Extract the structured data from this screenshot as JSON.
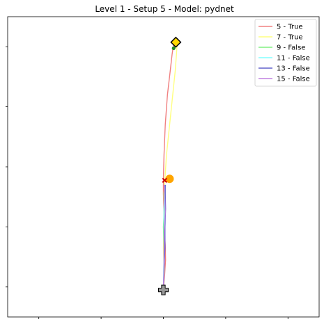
{
  "chart_data": {
    "type": "line",
    "title": "Level 1 - Setup 5 - Model: pydnet",
    "xlabel": "",
    "ylabel": "",
    "xlim": [
      0,
      10
    ],
    "ylim": [
      0,
      10
    ],
    "grid": false,
    "legend_position": "top-right",
    "series": [
      {
        "name": "5 - True",
        "color": "#f08080",
        "points": [
          [
            5.0,
            0.9
          ],
          [
            5.04,
            1.4
          ],
          [
            5.07,
            1.9
          ],
          [
            5.06,
            2.4
          ],
          [
            5.03,
            2.9
          ],
          [
            5.02,
            3.4
          ],
          [
            5.0,
            4.1
          ],
          [
            5.0,
            4.6
          ],
          [
            5.02,
            5.4
          ],
          [
            5.06,
            6.4
          ],
          [
            5.13,
            7.4
          ],
          [
            5.22,
            8.2
          ],
          [
            5.28,
            8.75
          ],
          [
            5.33,
            9.1
          ]
        ]
      },
      {
        "name": "7 - True",
        "color": "#ffff80",
        "points": [
          [
            5.0,
            0.9
          ],
          [
            5.02,
            1.6
          ],
          [
            5.0,
            2.3
          ],
          [
            5.02,
            2.9
          ],
          [
            5.04,
            3.5
          ],
          [
            5.02,
            4.1
          ],
          [
            5.05,
            4.6
          ],
          [
            5.1,
            5.4
          ],
          [
            5.2,
            6.4
          ],
          [
            5.3,
            7.4
          ],
          [
            5.38,
            8.2
          ],
          [
            5.42,
            8.75
          ],
          [
            5.44,
            9.1
          ]
        ]
      },
      {
        "name": "9 - False",
        "color": "#80f080",
        "points": [
          [
            5.0,
            0.9
          ],
          [
            5.03,
            1.6
          ],
          [
            5.02,
            2.3
          ],
          [
            5.0,
            3.0
          ],
          [
            5.03,
            3.6
          ],
          [
            5.02,
            4.1
          ],
          [
            5.05,
            4.4
          ]
        ]
      },
      {
        "name": "11 - False",
        "color": "#80ffff",
        "points": [
          [
            5.0,
            0.9
          ],
          [
            5.01,
            1.6
          ],
          [
            5.03,
            2.3
          ],
          [
            5.02,
            3.0
          ],
          [
            5.02,
            3.6
          ],
          [
            5.04,
            4.2
          ],
          [
            5.06,
            4.4
          ]
        ]
      },
      {
        "name": "13 - False",
        "color": "#6060cc",
        "points": [
          [
            5.0,
            0.9
          ],
          [
            5.02,
            1.6
          ],
          [
            5.05,
            2.3
          ],
          [
            5.05,
            3.0
          ],
          [
            5.07,
            3.6
          ],
          [
            5.06,
            4.1
          ],
          [
            5.06,
            4.4
          ]
        ]
      },
      {
        "name": "15 - False",
        "color": "#c080e0",
        "points": [
          [
            5.0,
            0.9
          ],
          [
            5.02,
            1.5
          ],
          [
            5.02,
            2.2
          ],
          [
            5.03,
            2.9
          ],
          [
            5.06,
            3.5
          ],
          [
            5.04,
            4.1
          ],
          [
            5.03,
            4.4
          ]
        ]
      }
    ],
    "markers": [
      {
        "kind": "start-cross",
        "x": 5.0,
        "y": 0.9,
        "color": "#999999"
      },
      {
        "kind": "orange-dot",
        "x": 5.2,
        "y": 4.6,
        "color": "#ffa500"
      },
      {
        "kind": "red-x",
        "x": 5.04,
        "y": 4.55,
        "color": "#cc0000"
      },
      {
        "kind": "goal-diamond",
        "x": 5.4,
        "y": 9.15,
        "color": "#ffd700"
      },
      {
        "kind": "green-dot",
        "x": 5.33,
        "y": 8.95,
        "color": "#228b22"
      }
    ]
  }
}
